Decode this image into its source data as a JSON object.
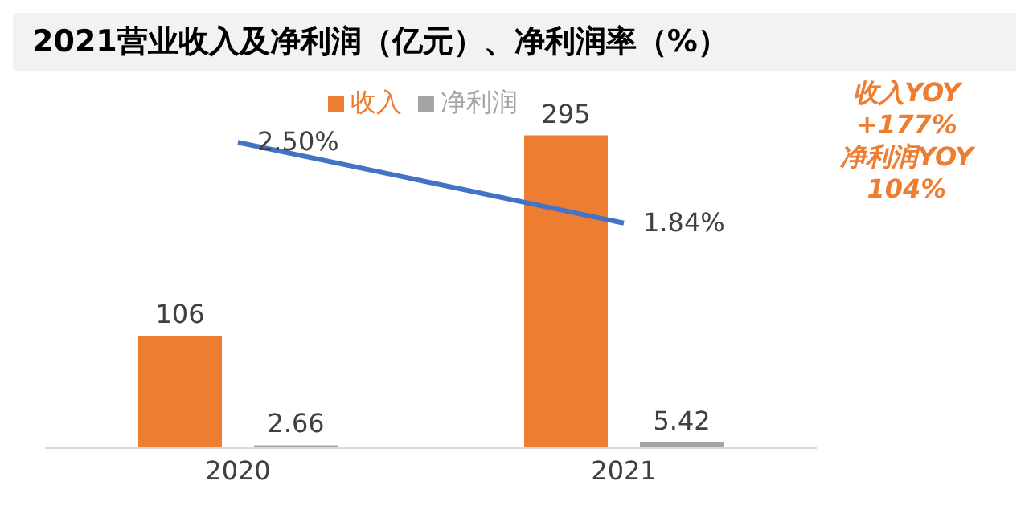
{
  "chart_data": {
    "type": "bar",
    "title": "2021营业收入及净利润（亿元）、净利润率（%）",
    "categories": [
      "2020",
      "2021"
    ],
    "series": [
      {
        "name": "收入",
        "color": "#ed7d31",
        "values": [
          106,
          295
        ]
      },
      {
        "name": "净利润",
        "color": "#a5a5a5",
        "values": [
          2.66,
          5.42
        ]
      },
      {
        "type": "line",
        "axis": "y2",
        "color": "#4472c4",
        "values": [
          2.5,
          1.84
        ],
        "value_labels": [
          "2.50%",
          "1.84%"
        ]
      }
    ],
    "data_labels": true,
    "tick_labels": "x",
    "legend": "top",
    "marker": "none",
    "annotations": [
      "收入YOY +177%",
      "净利润YOY 104%"
    ]
  }
}
